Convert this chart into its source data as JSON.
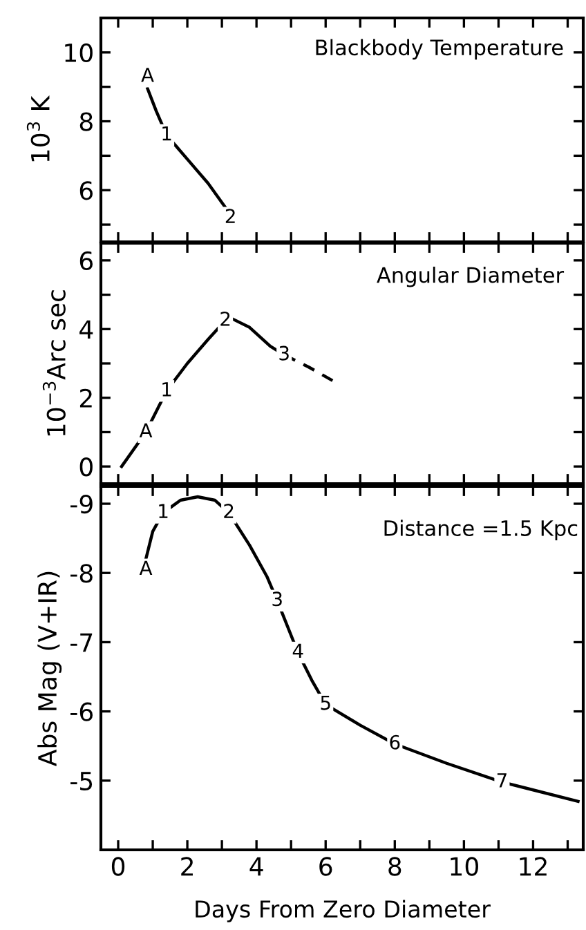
{
  "chart_data": [
    {
      "type": "line",
      "title": "Blackbody Temperature",
      "ylabel": "10$^{3}$ K",
      "xlim": [
        -0.5,
        13.45
      ],
      "ylim": [
        4.5,
        11
      ],
      "xticks": [
        0,
        {
          "value": 1,
          "label": null
        },
        2,
        {
          "value": 3,
          "label": null
        },
        4,
        {
          "value": 5,
          "label": null
        },
        6,
        {
          "value": 7,
          "label": null
        },
        8,
        {
          "value": 9,
          "label": null
        },
        10,
        {
          "value": 11,
          "label": null
        },
        12,
        {
          "value": 13,
          "label": null
        }
      ],
      "yticks": [
        {
          "value": 5,
          "label": null
        },
        6,
        {
          "value": 7,
          "label": null
        },
        8,
        {
          "value": 9,
          "label": null
        },
        10
      ],
      "tick_labels": "y",
      "grid": false,
      "legend": false,
      "series": [
        {
          "color": "#000000",
          "line_style": "solid",
          "x": [
            0.85,
            1.1,
            1.4,
            2.0,
            2.6,
            3.1
          ],
          "values": [
            8.95,
            8.3,
            7.6,
            6.9,
            6.2,
            5.5
          ]
        }
      ],
      "annotations": [
        {
          "text": "A",
          "x": 0.85,
          "y": 9.3
        },
        {
          "text": "1",
          "x": 1.4,
          "y": 7.6
        },
        {
          "text": "2",
          "x": 3.25,
          "y": 5.2
        }
      ]
    },
    {
      "type": "line",
      "title": "Angular Diameter",
      "ylabel": "10$^{−3}$Arc sec",
      "xlim": [
        -0.5,
        13.45
      ],
      "ylim": [
        -0.5,
        6.5
      ],
      "xticks": [
        0,
        {
          "value": 1,
          "label": null
        },
        2,
        {
          "value": 3,
          "label": null
        },
        4,
        {
          "value": 5,
          "label": null
        },
        6,
        {
          "value": 7,
          "label": null
        },
        8,
        {
          "value": 9,
          "label": null
        },
        10,
        {
          "value": 11,
          "label": null
        },
        12,
        {
          "value": 13,
          "label": null
        }
      ],
      "yticks": [
        0,
        {
          "value": 1,
          "label": null
        },
        2,
        {
          "value": 3,
          "label": null
        },
        4,
        {
          "value": 5,
          "label": null
        },
        6
      ],
      "tick_labels": "y",
      "grid": false,
      "legend": false,
      "series": [
        {
          "color": "#000000",
          "line_style": "solid",
          "x": [
            0.1,
            0.8,
            1.4,
            2.0,
            2.6,
            3.1,
            3.3,
            3.8,
            4.4,
            4.8
          ],
          "values": [
            0,
            1.0,
            2.2,
            3.0,
            3.7,
            4.25,
            4.3,
            4.05,
            3.5,
            3.25
          ]
        },
        {
          "color": "#000000",
          "line_style": "dashed",
          "x": [
            4.8,
            5.5,
            6.2
          ],
          "values": [
            3.25,
            2.9,
            2.5
          ]
        }
      ],
      "annotations": [
        {
          "text": "A",
          "x": 0.8,
          "y": 1.0
        },
        {
          "text": "1",
          "x": 1.4,
          "y": 2.2
        },
        {
          "text": "2",
          "x": 3.1,
          "y": 4.25
        },
        {
          "text": "3",
          "x": 4.8,
          "y": 3.25
        }
      ]
    },
    {
      "type": "line",
      "xlabel": "Days From Zero Diameter",
      "ylabel": "Abs Mag (V+IR)",
      "xlim": [
        -0.5,
        13.45
      ],
      "ylim": [
        -4,
        -9.25
      ],
      "xticks": [
        0,
        {
          "value": 1,
          "label": null
        },
        2,
        {
          "value": 3,
          "label": null
        },
        4,
        {
          "value": 5,
          "label": null
        },
        6,
        {
          "value": 7,
          "label": null
        },
        8,
        {
          "value": 9,
          "label": null
        },
        10,
        {
          "value": 11,
          "label": null
        },
        12,
        {
          "value": 13,
          "label": null
        }
      ],
      "yticks": [
        -9,
        -8,
        -7,
        -6,
        -5
      ],
      "grid": false,
      "legend": false,
      "series": [
        {
          "color": "#000000",
          "line_style": "solid",
          "x": [
            0.8,
            1.0,
            1.3,
            1.8,
            2.3,
            2.8,
            3.2,
            3.8,
            4.3,
            4.6,
            5.2,
            5.6,
            6.0,
            7.0,
            8.0,
            9.5,
            11.1,
            13.3
          ],
          "values": [
            -8.2,
            -8.6,
            -8.87,
            -9.05,
            -9.1,
            -9.05,
            -8.87,
            -8.4,
            -7.95,
            -7.6,
            -6.85,
            -6.45,
            -6.1,
            -5.8,
            -5.53,
            -5.25,
            -4.98,
            -4.7
          ]
        }
      ],
      "annotations": [
        "Distance =1.5 Kpc",
        {
          "text": "A",
          "x": 0.8,
          "y": -8.05
        },
        {
          "text": "1",
          "x": 1.3,
          "y": -8.87
        },
        {
          "text": "2",
          "x": 3.2,
          "y": -8.87
        },
        {
          "text": "3",
          "x": 4.6,
          "y": -7.6
        },
        {
          "text": "4",
          "x": 5.2,
          "y": -6.85
        },
        {
          "text": "5",
          "x": 6.0,
          "y": -6.1
        },
        {
          "text": "6",
          "x": 8.0,
          "y": -5.53
        },
        {
          "text": "7",
          "x": 11.1,
          "y": -4.98
        }
      ]
    }
  ]
}
